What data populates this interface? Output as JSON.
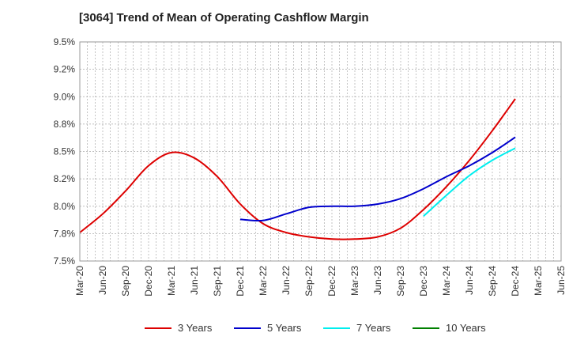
{
  "chart_data": {
    "type": "line",
    "title": "[3064]  Trend of Mean of Operating Cashflow Margin",
    "xlabel": "",
    "ylabel": "",
    "x_ticks": [
      "Mar-20",
      "Jun-20",
      "Sep-20",
      "Dec-20",
      "Mar-21",
      "Jun-21",
      "Sep-21",
      "Dec-21",
      "Mar-22",
      "Jun-22",
      "Sep-22",
      "Dec-22",
      "Mar-23",
      "Jun-23",
      "Sep-23",
      "Dec-23",
      "Mar-24",
      "Jun-24",
      "Sep-24",
      "Dec-24",
      "Mar-25",
      "Jun-25"
    ],
    "y_ticks": [
      "7.5%",
      "7.8%",
      "8.0%",
      "8.2%",
      "8.5%",
      "8.8%",
      "9.0%",
      "9.2%",
      "9.5%"
    ],
    "ylim": [
      7.5,
      9.5
    ],
    "y_unit": "%",
    "grid": true,
    "legend_position": "bottom",
    "series": [
      {
        "name": "3 Years",
        "color": "#dd0000",
        "x": [
          "Mar-20",
          "Jun-20",
          "Sep-20",
          "Dec-20",
          "Mar-21",
          "Jun-21",
          "Sep-21",
          "Dec-21",
          "Mar-22",
          "Jun-22",
          "Sep-22",
          "Dec-22",
          "Mar-23",
          "Jun-23",
          "Sep-23",
          "Dec-23",
          "Mar-24",
          "Jun-24",
          "Sep-24",
          "Dec-24"
        ],
        "values": [
          7.76,
          7.93,
          8.14,
          8.37,
          8.49,
          8.44,
          8.27,
          8.02,
          7.84,
          7.76,
          7.72,
          7.7,
          7.7,
          7.72,
          7.8,
          7.97,
          8.18,
          8.42,
          8.69,
          8.98
        ]
      },
      {
        "name": "5 Years",
        "color": "#0000cc",
        "x": [
          "Dec-21",
          "Mar-22",
          "Jun-22",
          "Sep-22",
          "Dec-22",
          "Mar-23",
          "Jun-23",
          "Sep-23",
          "Dec-23",
          "Mar-24",
          "Jun-24",
          "Sep-24",
          "Dec-24"
        ],
        "values": [
          7.88,
          7.87,
          7.93,
          7.99,
          8.0,
          8.0,
          8.02,
          8.07,
          8.16,
          8.27,
          8.37,
          8.49,
          8.63
        ]
      },
      {
        "name": "7 Years",
        "color": "#00eeee",
        "x": [
          "Dec-23",
          "Mar-24",
          "Jun-24",
          "Sep-24",
          "Dec-24"
        ],
        "values": [
          7.91,
          8.1,
          8.28,
          8.42,
          8.53
        ]
      },
      {
        "name": "10 Years",
        "color": "#008000",
        "x": [],
        "values": []
      }
    ]
  }
}
